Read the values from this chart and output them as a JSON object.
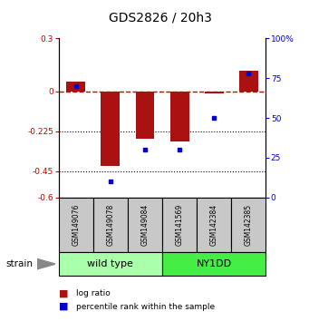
{
  "title": "GDS2826 / 20h3",
  "samples": [
    "GSM149076",
    "GSM149078",
    "GSM149084",
    "GSM141569",
    "GSM142384",
    "GSM142385"
  ],
  "log_ratio": [
    0.055,
    -0.42,
    -0.27,
    -0.285,
    -0.01,
    0.12
  ],
  "percentile": [
    70,
    10,
    30,
    30,
    50,
    78
  ],
  "strain_groups": [
    {
      "label": "wild type",
      "indices": [
        0,
        1,
        2
      ],
      "color": "#aaffaa"
    },
    {
      "label": "NY1DD",
      "indices": [
        3,
        4,
        5
      ],
      "color": "#44ee44"
    }
  ],
  "bar_color": "#aa1111",
  "dot_color": "#0000cc",
  "ylim_left": [
    -0.6,
    0.3
  ],
  "ylim_right": [
    0,
    100
  ],
  "yticks_left": [
    0.3,
    0.0,
    -0.225,
    -0.45,
    -0.6
  ],
  "ytick_labels_left": [
    "0.3",
    "0",
    "-0.225",
    "-0.45",
    "-0.6"
  ],
  "yticks_right": [
    100,
    75,
    50,
    25,
    0
  ],
  "ytick_labels_right": [
    "100%",
    "75",
    "50",
    "25",
    "0"
  ],
  "hlines": [
    0.0,
    -0.225,
    -0.45
  ],
  "hline_styles": [
    "--",
    ":",
    ":"
  ],
  "hline_colors": [
    "#cc0000",
    "#000000",
    "#000000"
  ],
  "background_color": "#ffffff",
  "bar_width": 0.55
}
